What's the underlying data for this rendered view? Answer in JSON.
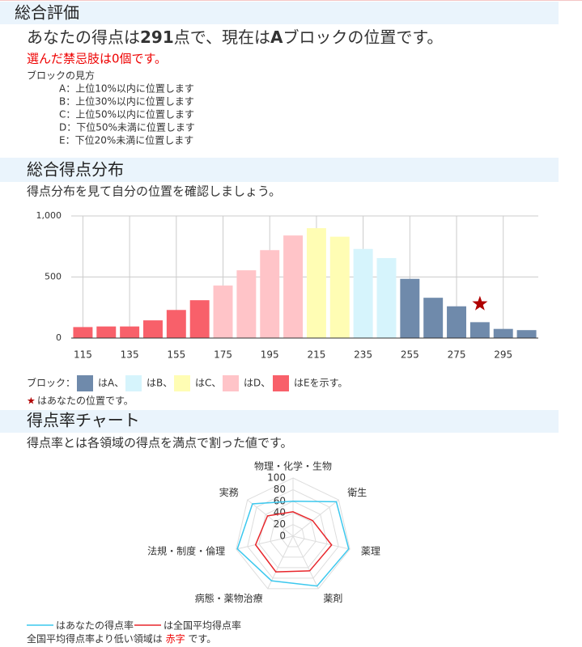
{
  "summary": {
    "title": "総合評価",
    "score_parts": [
      "あなたの得点は",
      "291",
      "点で、現在は",
      "A",
      "ブロックの位置です。"
    ],
    "forbidden": "選んだ禁忌肢は0個です。",
    "block_guide_title": "ブロックの見方",
    "block_guide": [
      "A：上位10%以内に位置します",
      "B：上位30%以内に位置します",
      "C：上位50%以内に位置します",
      "D：下位50%未満に位置します",
      "E：下位20%未満に位置します"
    ]
  },
  "distribution": {
    "title": "総合得点分布",
    "subtitle": "得点分布を見て自分の位置を確認しましょう。",
    "chart_data": {
      "type": "bar",
      "x": [
        115,
        125,
        135,
        145,
        155,
        165,
        175,
        185,
        195,
        205,
        215,
        225,
        235,
        245,
        255,
        265,
        275,
        285,
        295,
        305
      ],
      "values": [
        90,
        95,
        95,
        145,
        230,
        310,
        430,
        555,
        720,
        840,
        900,
        830,
        730,
        655,
        485,
        330,
        260,
        130,
        75,
        65
      ],
      "colors": [
        "#f8606a",
        "#f8606a",
        "#f8606a",
        "#f8606a",
        "#f8606a",
        "#f8606a",
        "#ffc4c8",
        "#ffc4c8",
        "#ffc4c8",
        "#ffc4c8",
        "#fffdb4",
        "#fffdb4",
        "#d6f4fc",
        "#d6f4fc",
        "#6f8aab",
        "#6f8aab",
        "#6f8aab",
        "#6f8aab",
        "#6f8aab",
        "#6f8aab"
      ],
      "xlim": [
        110,
        310
      ],
      "xticks": [
        115,
        135,
        155,
        175,
        195,
        215,
        235,
        255,
        275,
        295
      ],
      "ylim": [
        0,
        1000
      ],
      "yticks": [
        0,
        500,
        {
          "value": 1000,
          "label": "1,000"
        }
      ],
      "grid": true,
      "marker": {
        "x": 285,
        "y": 280,
        "color": "#b00000"
      },
      "legend": {
        "label": "ブロック：",
        "items": [
          {
            "name": "はA、",
            "color": "#6f8aab"
          },
          {
            "name": "はB、",
            "color": "#d6f4fc"
          },
          {
            "name": "はC、",
            "color": "#fffdb4"
          },
          {
            "name": "はD、",
            "color": "#ffc4c8"
          },
          {
            "name": "はEを示す。",
            "color": "#f8606a"
          }
        ]
      },
      "note": {
        "symbol": "★",
        "text": "はあなたの位置です。"
      }
    }
  },
  "rate": {
    "title": "得点率チャート",
    "subtitle": "得点率とは各領域の得点を満点で割った値です。",
    "chart_data": {
      "type": "radar",
      "axes": [
        "物理・化学・生物",
        "衛生",
        "薬理",
        "薬剤",
        "病態・薬物治療",
        "法規・制度・倫理",
        "実務"
      ],
      "rlim": [
        0,
        100
      ],
      "rticks": [
        0,
        20,
        40,
        60,
        80,
        100
      ],
      "series": [
        {
          "name": "はあなたの得点率",
          "color": "#3cc8ee",
          "values": [
            60,
            95,
            98,
            95,
            85,
            98,
            89
          ]
        },
        {
          "name": "は全国平均得点率",
          "color": "#e8262b",
          "values": [
            42,
            43,
            68,
            66,
            68,
            66,
            56
          ]
        }
      ]
    },
    "footer_parts": [
      "全国平均得点率より低い領域は ",
      "赤字",
      " です。"
    ]
  }
}
